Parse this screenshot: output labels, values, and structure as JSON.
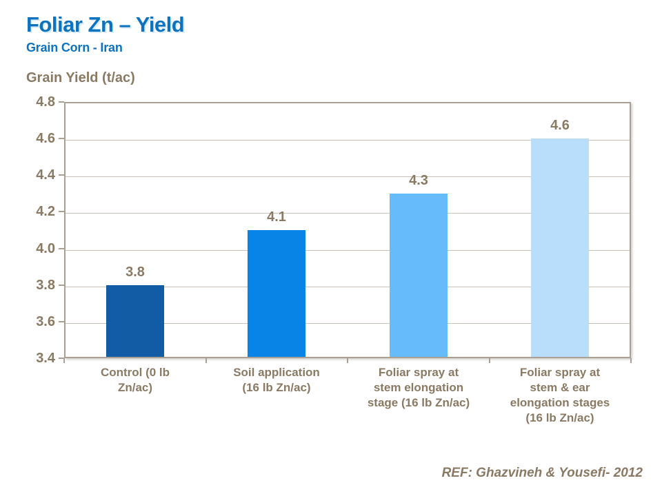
{
  "header": {
    "title": "Foliar Zn – Yield",
    "subtitle": "Grain Corn - Iran"
  },
  "footer": {
    "reference": "REF: Ghazvineh & Yousefi- 2012"
  },
  "colors": {
    "title_blue": "#0E73BF",
    "text_brown": "#8A7963",
    "gridline": "#C9C1B5",
    "plot_border": "#A9A093",
    "bar_colors": [
      "#115CA5",
      "#0883E6",
      "#66BBFA",
      "#B9DEFB"
    ]
  },
  "chart_data": {
    "type": "bar",
    "title": "Grain Yield (t/ac)",
    "ylabel": "Grain Yield (t/ac)",
    "xlabel": "",
    "categories": [
      "Control (0 lb Zn/ac)",
      "Soil application (16 lb Zn/ac)",
      "Foliar spray at stem elongation stage (16 lb Zn/ac)",
      "Foliar spray at stem & ear elongation stages (16 lb Zn/ac)"
    ],
    "category_display_lines": [
      "Control (0 lb\nZn/ac)",
      "Soil application\n(16 lb Zn/ac)",
      "Foliar spray at\nstem elongation\nstage (16 lb Zn/ac)",
      "Foliar spray at\nstem & ear\nelongation stages\n(16 lb Zn/ac)"
    ],
    "values": [
      3.8,
      4.1,
      4.3,
      4.6
    ],
    "value_labels": [
      "3.8",
      "4.1",
      "4.3",
      "4.6"
    ],
    "bar_colors": [
      "#115CA5",
      "#0883E6",
      "#66BBFA",
      "#B9DEFB"
    ],
    "ylim": [
      3.4,
      4.8
    ],
    "ytick_labels": [
      "4.8",
      "4.6",
      "4.4",
      "4.2",
      "4.0",
      "3.8",
      "3.6",
      "3.4"
    ],
    "ytick_values": [
      4.8,
      4.6,
      4.4,
      4.2,
      4.0,
      3.8,
      3.6,
      3.4
    ],
    "grid": true,
    "legend": false
  }
}
